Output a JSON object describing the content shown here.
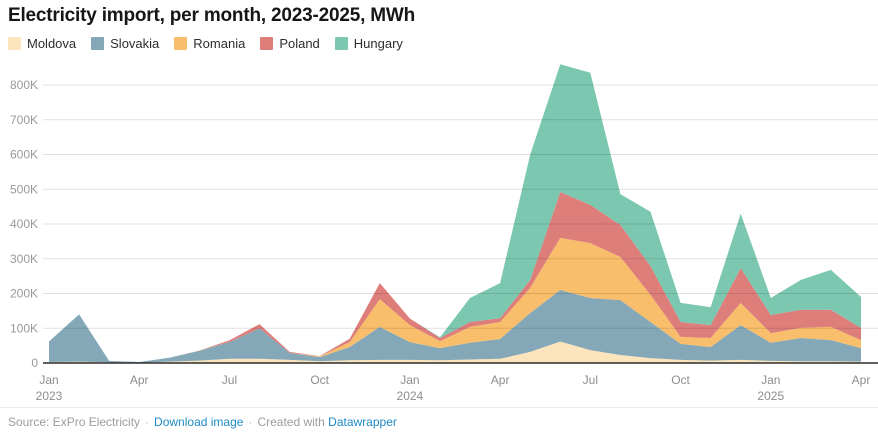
{
  "header": {
    "title": "Electricity import, per month, 2023-2025, MWh"
  },
  "chart_data": {
    "type": "area",
    "stacked": true,
    "title": "Electricity import, per month, 2023-2025, MWh",
    "ylabel": "MWh",
    "xlabel": "",
    "grid": true,
    "legend_position": "top",
    "ylim": [
      0,
      880000
    ],
    "x": [
      "Jan 2023",
      "Feb 2023",
      "Mar 2023",
      "Apr 2023",
      "May 2023",
      "Jun 2023",
      "Jul 2023",
      "Aug 2023",
      "Sep 2023",
      "Oct 2023",
      "Nov 2023",
      "Dec 2023",
      "Jan 2024",
      "Feb 2024",
      "Mar 2024",
      "Apr 2024",
      "May 2024",
      "Jun 2024",
      "Jul 2024",
      "Aug 2024",
      "Sep 2024",
      "Oct 2024",
      "Nov 2024",
      "Dec 2024",
      "Jan 2025",
      "Feb 2025",
      "Mar 2025",
      "Apr 2025"
    ],
    "x_ticks": [
      {
        "index": 0,
        "label": "Jan",
        "year": "2023"
      },
      {
        "index": 3,
        "label": "Apr"
      },
      {
        "index": 6,
        "label": "Jul"
      },
      {
        "index": 9,
        "label": "Oct"
      },
      {
        "index": 12,
        "label": "Jan",
        "year": "2024"
      },
      {
        "index": 15,
        "label": "Apr"
      },
      {
        "index": 18,
        "label": "Jul"
      },
      {
        "index": 21,
        "label": "Oct"
      },
      {
        "index": 24,
        "label": "Jan",
        "year": "2025"
      },
      {
        "index": 27,
        "label": "Apr"
      }
    ],
    "y_ticks": [
      {
        "value": 0,
        "label": "0"
      },
      {
        "value": 100000,
        "label": "100K"
      },
      {
        "value": 200000,
        "label": "200K"
      },
      {
        "value": 300000,
        "label": "300K"
      },
      {
        "value": 400000,
        "label": "400K"
      },
      {
        "value": 500000,
        "label": "500K"
      },
      {
        "value": 600000,
        "label": "600K"
      },
      {
        "value": 700000,
        "label": "700K"
      },
      {
        "value": 800000,
        "label": "800K"
      }
    ],
    "series": [
      {
        "name": "Moldova",
        "color": "#FCE4BC",
        "values": [
          3000,
          4000,
          2000,
          1000,
          4000,
          7000,
          12000,
          12000,
          9000,
          5000,
          8000,
          9000,
          9000,
          8000,
          10000,
          12000,
          32000,
          62000,
          37000,
          23000,
          14000,
          9000,
          7000,
          9000,
          6000,
          5000,
          5000,
          4000
        ]
      },
      {
        "name": "Slovakia",
        "color": "#84A8B8",
        "values": [
          59000,
          136000,
          4000,
          2000,
          11000,
          28000,
          48000,
          88000,
          20000,
          12000,
          38000,
          95000,
          51000,
          35000,
          48000,
          57000,
          112000,
          148000,
          150000,
          158000,
          104000,
          46000,
          39000,
          100000,
          52000,
          67000,
          61000,
          39000
        ]
      },
      {
        "name": "Romania",
        "color": "#F9BE6B",
        "values": [
          0,
          0,
          0,
          0,
          0,
          1000,
          0,
          0,
          0,
          2000,
          14000,
          80000,
          49000,
          20000,
          46000,
          49000,
          72000,
          150000,
          158000,
          124000,
          78000,
          20000,
          26000,
          64000,
          28000,
          29000,
          38000,
          23000
        ]
      },
      {
        "name": "Poland",
        "color": "#DE7E7B",
        "values": [
          0,
          0,
          0,
          0,
          0,
          0,
          5000,
          12000,
          3000,
          1000,
          10000,
          46000,
          19000,
          9000,
          14000,
          11000,
          23000,
          132000,
          110000,
          92000,
          83000,
          43000,
          37000,
          100000,
          52000,
          52000,
          49000,
          35000
        ]
      },
      {
        "name": "Hungary",
        "color": "#7CC7B0",
        "values": [
          0,
          0,
          0,
          0,
          0,
          0,
          0,
          0,
          0,
          0,
          0,
          0,
          0,
          2000,
          69000,
          101000,
          361000,
          368000,
          380000,
          89000,
          156000,
          55000,
          52000,
          157000,
          49000,
          86000,
          115000,
          89000
        ]
      }
    ]
  },
  "footer": {
    "source": "Source: ExPro Electricity",
    "sep": "·",
    "download_label": "Download image",
    "created_prefix": "Created with",
    "datawrapper_label": "Datawrapper"
  }
}
